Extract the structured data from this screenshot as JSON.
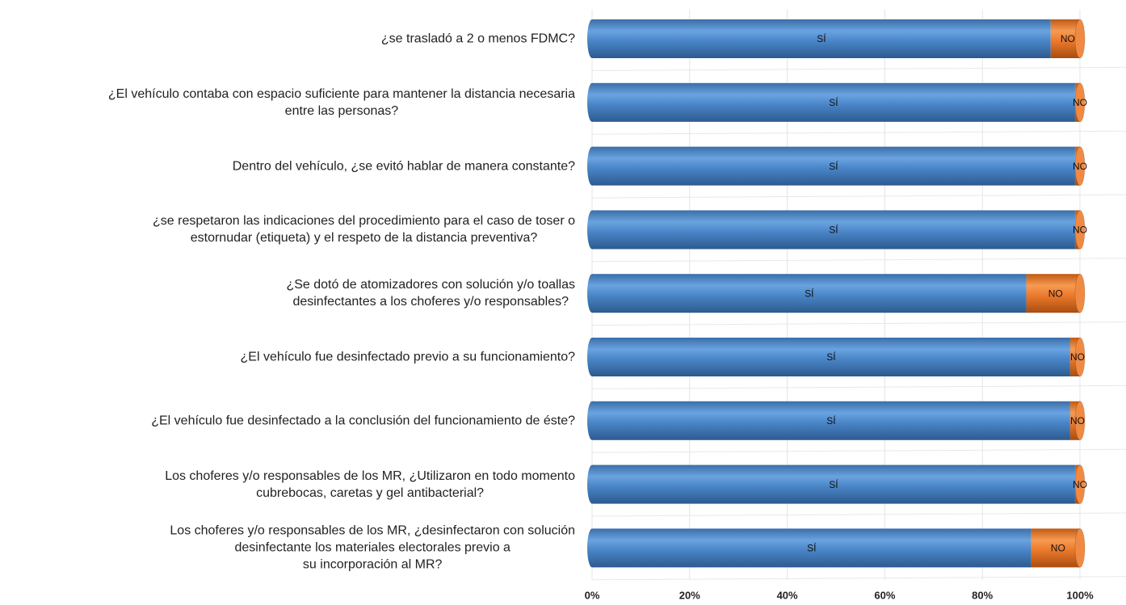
{
  "chart_data": {
    "type": "bar",
    "orientation": "horizontal",
    "stacked": true,
    "categories": [
      "¿se trasladó a 2 o menos FDMC?",
      "¿El vehículo contaba con espacio suficiente para mantener la distancia necesaria\nentre las personas?",
      "Dentro del vehículo, ¿se evitó hablar de manera constante?",
      "¿se respetaron las indicaciones del procedimiento para el caso de toser o\nestornudar (etiqueta) y el respeto de la distancia preventiva?",
      "¿Se dotó de atomizadores con solución y/o toallas\ndesinfectantes a los choferes y/o responsables?",
      "¿El vehículo fue desinfectado previo a su funcionamiento?",
      "¿El vehículo fue desinfectado a la conclusión del funcionamiento de éste?",
      "Los choferes y/o responsables de los MR, ¿Utilizaron en todo momento\ncubrebocas, caretas y gel antibacterial?",
      "Los choferes y/o responsables de los MR, ¿desinfectaron con solución\ndesinfectante los materiales electorales previo a\nsu incorporación al MR?"
    ],
    "series": [
      {
        "name": "SÍ",
        "color": "#4a86c8",
        "values": [
          94,
          99,
          99,
          99,
          89,
          98,
          98,
          99,
          90
        ]
      },
      {
        "name": "NO",
        "color": "#ec7a2c",
        "values": [
          6,
          1,
          1,
          1,
          11,
          2,
          2,
          1,
          10
        ]
      }
    ],
    "xlim": [
      0,
      100
    ],
    "xticks": [
      {
        "value": 0,
        "label": "0%"
      },
      {
        "value": 20,
        "label": "20%"
      },
      {
        "value": 40,
        "label": "40%"
      },
      {
        "value": 60,
        "label": "60%"
      },
      {
        "value": 80,
        "label": "80%"
      },
      {
        "value": 100,
        "label": "100%"
      }
    ],
    "grid": true
  }
}
